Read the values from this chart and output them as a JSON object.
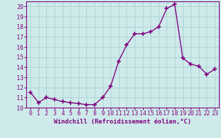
{
  "x": [
    0,
    1,
    2,
    3,
    4,
    5,
    6,
    7,
    8,
    9,
    10,
    11,
    12,
    13,
    14,
    15,
    16,
    17,
    18,
    19,
    20,
    21,
    22,
    23
  ],
  "y": [
    11.5,
    10.5,
    11.0,
    10.8,
    10.6,
    10.5,
    10.4,
    10.3,
    10.3,
    11.0,
    12.1,
    14.6,
    16.2,
    17.3,
    17.3,
    17.5,
    18.0,
    19.8,
    20.2,
    14.9,
    14.3,
    14.1,
    13.3,
    13.8
  ],
  "line_color": "#800080",
  "marker": "+",
  "marker_size": 4,
  "marker_lw": 1.2,
  "line_width": 1.0,
  "bg_color": "#ceeaea",
  "grid_color": "#aed4d4",
  "xlabel": "Windchill (Refroidissement éolien,°C)",
  "xlabel_fontsize": 6.5,
  "tick_fontsize": 6,
  "ylim": [
    10,
    20.5
  ],
  "xlim": [
    -0.5,
    23.5
  ],
  "yticks": [
    10,
    11,
    12,
    13,
    14,
    15,
    16,
    17,
    18,
    19,
    20
  ],
  "figsize": [
    3.2,
    2.0
  ],
  "dpi": 100
}
